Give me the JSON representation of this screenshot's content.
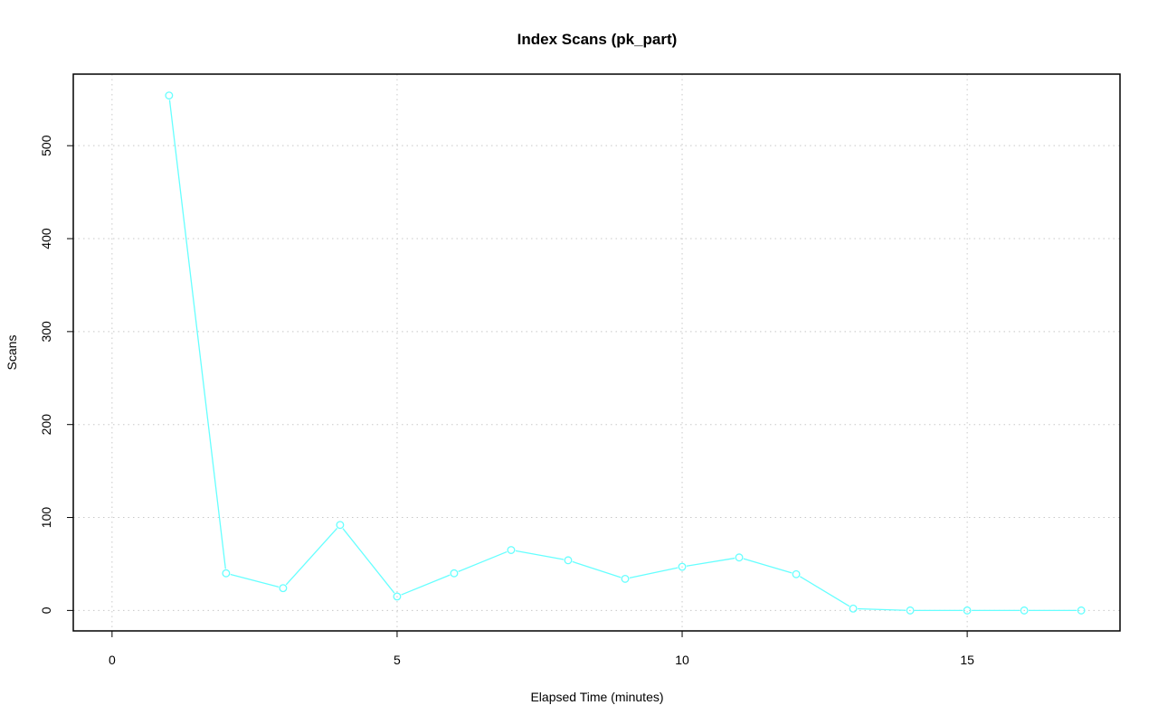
{
  "chart_data": {
    "type": "line",
    "title": "Index Scans (pk_part)",
    "xlabel": "Elapsed Time (minutes)",
    "ylabel": "Scans",
    "xlim": [
      -0.68,
      17.68
    ],
    "ylim": [
      -22,
      577
    ],
    "xticks": [
      0,
      5,
      10,
      15
    ],
    "yticks": [
      0,
      100,
      200,
      300,
      400,
      500
    ],
    "grid": true,
    "series": [
      {
        "name": "pk_part",
        "color": "#66ffff",
        "x": [
          1,
          2,
          3,
          4,
          5,
          6,
          7,
          8,
          9,
          10,
          11,
          12,
          13,
          14,
          15,
          16,
          17
        ],
        "y": [
          554,
          40,
          24,
          92,
          15,
          40,
          65,
          54,
          34,
          47,
          57,
          39,
          2,
          0,
          0,
          0,
          0
        ]
      }
    ]
  }
}
